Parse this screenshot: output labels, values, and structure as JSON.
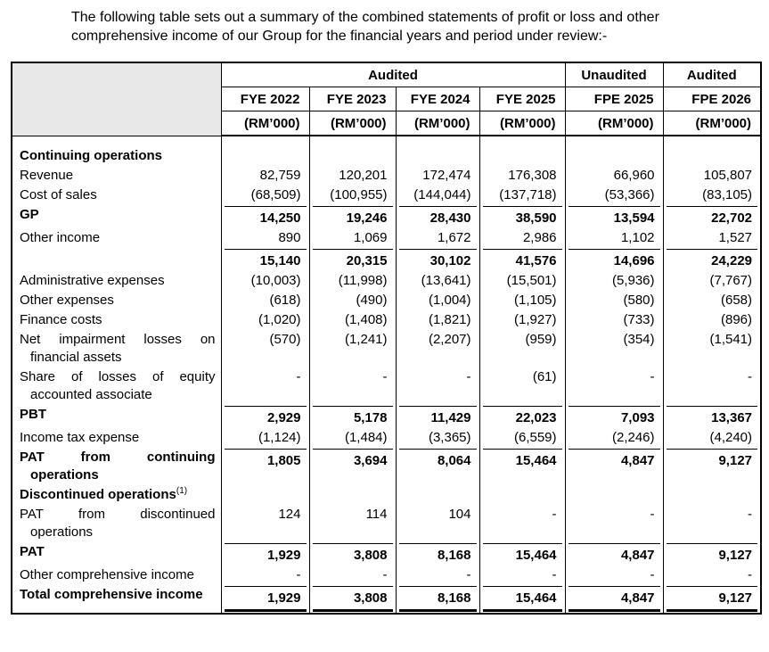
{
  "intro": "The following table sets out a summary of the combined statements of profit or loss and other comprehensive income of our Group for the financial years and period under review:-",
  "colors": {
    "corner_cell_bg": "#e8e8e8",
    "border": "#000000",
    "text": "#000000"
  },
  "table": {
    "groups": [
      {
        "label": "Audited",
        "span": 4
      },
      {
        "label": "Unaudited",
        "span": 1
      },
      {
        "label": "Audited",
        "span": 1
      }
    ],
    "columns": [
      "FYE 2022",
      "FYE 2023",
      "FYE 2024",
      "FYE 2025",
      "FPE 2025",
      "FPE 2026"
    ],
    "unit": "(RM’000)",
    "rows": [
      {
        "label": "Continuing operations",
        "bold": true,
        "values": [
          "",
          "",
          "",
          "",
          "",
          ""
        ]
      },
      {
        "label": "Revenue",
        "bold": false,
        "values": [
          "82,759",
          "120,201",
          "172,474",
          "176,308",
          "66,960",
          "105,807"
        ]
      },
      {
        "label": "Cost of sales",
        "bold": false,
        "values": [
          "(68,509)",
          "(100,955)",
          "(144,044)",
          "(137,718)",
          "(53,366)",
          "(83,105)"
        ]
      },
      {
        "label": "GP",
        "bold": true,
        "rule_above": true,
        "values": [
          "14,250",
          "19,246",
          "28,430",
          "38,590",
          "13,594",
          "22,702"
        ]
      },
      {
        "label": "Other income",
        "bold": false,
        "values": [
          "890",
          "1,069",
          "1,672",
          "2,986",
          "1,102",
          "1,527"
        ]
      },
      {
        "label": "",
        "bold": true,
        "rule_above": true,
        "values": [
          "15,140",
          "20,315",
          "30,102",
          "41,576",
          "14,696",
          "24,229"
        ]
      },
      {
        "label": "Administrative expenses",
        "bold": false,
        "values": [
          "(10,003)",
          "(11,998)",
          "(13,641)",
          "(15,501)",
          "(5,936)",
          "(7,767)"
        ]
      },
      {
        "label": "Other expenses",
        "bold": false,
        "values": [
          "(618)",
          "(490)",
          "(1,004)",
          "(1,105)",
          "(580)",
          "(658)"
        ]
      },
      {
        "label": "Finance costs",
        "bold": false,
        "values": [
          "(1,020)",
          "(1,408)",
          "(1,821)",
          "(1,927)",
          "(733)",
          "(896)"
        ]
      },
      {
        "label": "Net impairment losses on financial assets",
        "bold": false,
        "values": [
          "(570)",
          "(1,241)",
          "(2,207)",
          "(959)",
          "(354)",
          "(1,541)"
        ]
      },
      {
        "label": "Share of losses of equity accounted associate",
        "bold": false,
        "values": [
          "-",
          "-",
          "-",
          "(61)",
          "-",
          "-"
        ]
      },
      {
        "label": "PBT",
        "bold": true,
        "rule_above": true,
        "values": [
          "2,929",
          "5,178",
          "11,429",
          "22,023",
          "7,093",
          "13,367"
        ]
      },
      {
        "label": "Income tax expense",
        "bold": false,
        "values": [
          "(1,124)",
          "(1,484)",
          "(3,365)",
          "(6,559)",
          "(2,246)",
          "(4,240)"
        ]
      },
      {
        "label": "PAT from continuing operations",
        "bold": true,
        "rule_above": true,
        "values": [
          "1,805",
          "3,694",
          "8,064",
          "15,464",
          "4,847",
          "9,127"
        ]
      },
      {
        "label": "Discontinued operations",
        "sup": "(1)",
        "bold": true,
        "values": [
          "",
          "",
          "",
          "",
          "",
          ""
        ]
      },
      {
        "label": "PAT from discontinued operations",
        "bold": false,
        "values": [
          "124",
          "114",
          "104",
          "-",
          "-",
          "-"
        ]
      },
      {
        "label": "PAT",
        "bold": true,
        "rule_above": true,
        "values": [
          "1,929",
          "3,808",
          "8,168",
          "15,464",
          "4,847",
          "9,127"
        ]
      },
      {
        "label": "Other comprehensive income",
        "bold": false,
        "values": [
          "-",
          "-",
          "-",
          "-",
          "-",
          "-"
        ]
      },
      {
        "label": "Total comprehensive income",
        "bold": true,
        "rule_above": true,
        "rule_below": true,
        "values": [
          "1,929",
          "3,808",
          "8,168",
          "15,464",
          "4,847",
          "9,127"
        ]
      }
    ]
  }
}
